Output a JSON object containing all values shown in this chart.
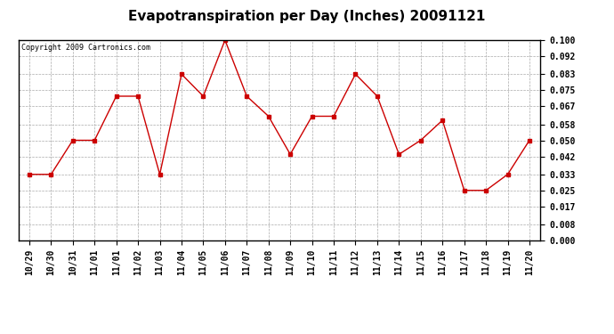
{
  "title": "Evapotranspiration per Day (Inches) 20091121",
  "copyright": "Copyright 2009 Cartronics.com",
  "x_labels": [
    "10/29",
    "10/30",
    "10/31",
    "11/01",
    "11/01",
    "11/02",
    "11/03",
    "11/04",
    "11/05",
    "11/06",
    "11/07",
    "11/08",
    "11/09",
    "11/10",
    "11/11",
    "11/12",
    "11/13",
    "11/14",
    "11/15",
    "11/16",
    "11/17",
    "11/18",
    "11/19",
    "11/20"
  ],
  "values": [
    0.033,
    0.033,
    0.05,
    0.05,
    0.072,
    0.072,
    0.033,
    0.083,
    0.072,
    0.1,
    0.072,
    0.062,
    0.043,
    0.062,
    0.062,
    0.083,
    0.072,
    0.043,
    0.05,
    0.06,
    0.025,
    0.025,
    0.033,
    0.05
  ],
  "y_ticks": [
    0.0,
    0.008,
    0.017,
    0.025,
    0.033,
    0.042,
    0.05,
    0.058,
    0.067,
    0.075,
    0.083,
    0.092,
    0.1
  ],
  "line_color": "#cc0000",
  "marker": "s",
  "marker_size": 3,
  "background_color": "#ffffff",
  "grid_color": "#aaaaaa",
  "ylim": [
    0.0,
    0.1
  ],
  "title_fontsize": 11,
  "copyright_fontsize": 6,
  "tick_fontsize": 7
}
